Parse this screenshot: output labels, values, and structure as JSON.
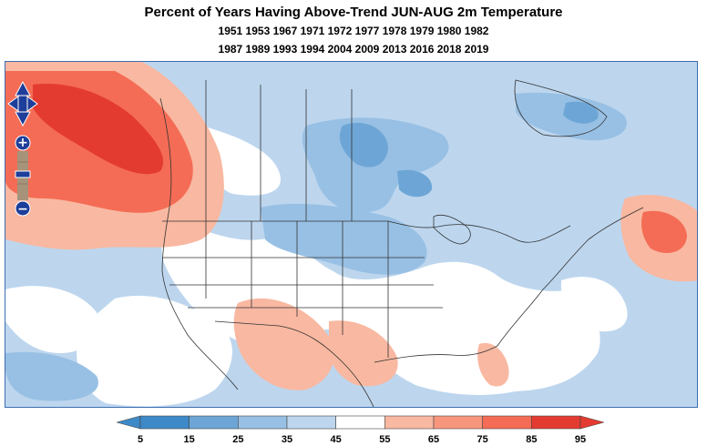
{
  "title": "Percent of Years Having Above-Trend JUN-AUG 2m Temperature",
  "years_line1": "1951 1953 1967 1971 1972 1977 1978 1979 1980 1982",
  "years_line2": "1987 1989 1993 1994 2004 2009 2013 2016 2018 2019",
  "legend": {
    "ticks": [
      "5",
      "15",
      "25",
      "35",
      "45",
      "55",
      "65",
      "75",
      "85",
      "95"
    ],
    "colors": [
      "#3e89c7",
      "#6da6d6",
      "#98c0e4",
      "#bdd6ee",
      "#ffffff",
      "#f9b8a1",
      "#f8967d",
      "#f46c55",
      "#e43b30"
    ]
  },
  "colors": {
    "frame": "#3b6db0",
    "nav_fill": "#1d3e9a",
    "red_dark": "#e43b30",
    "red_mid": "#f46c55",
    "red_light": "#f9b8a1",
    "blue_light": "#bdd6ee",
    "blue_mid": "#98c0e4",
    "blue_dark": "#6da6d6"
  },
  "controls": {
    "pan": "pan-control",
    "zoom_in": "+",
    "zoom_out": "−"
  }
}
